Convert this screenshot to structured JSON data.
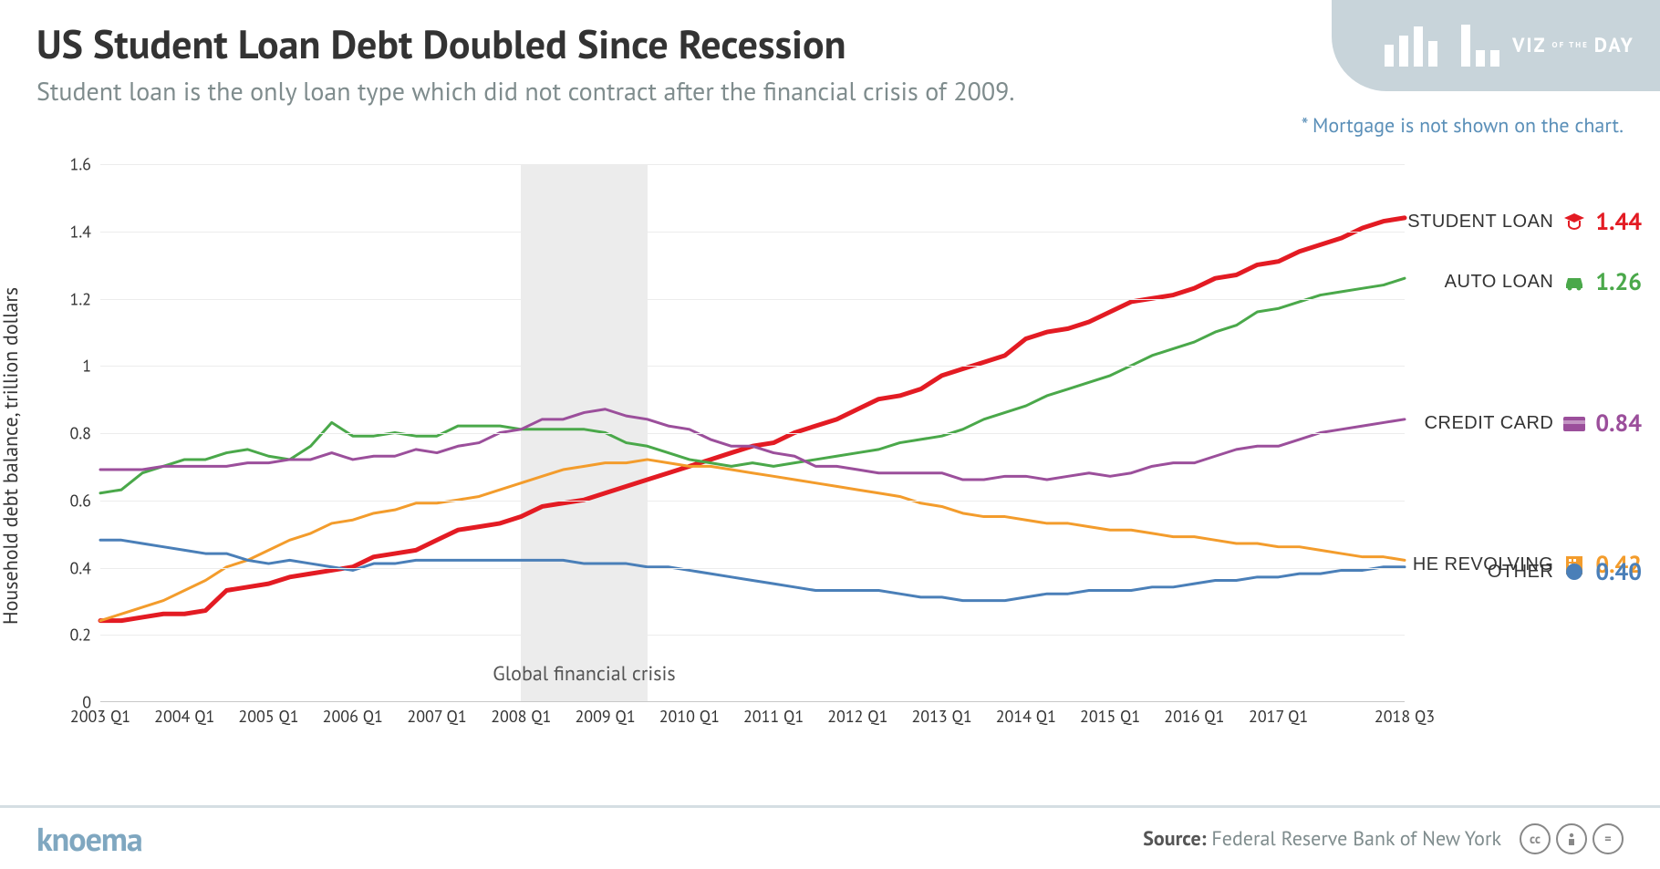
{
  "header": {
    "title": "US Student Loan Debt Doubled Since Recession",
    "subtitle": "Student loan is the only loan type which did not contract after the financial crisis of 2009.",
    "note": "* Mortgage is not shown on the chart.",
    "badge_viz": "VIZ",
    "badge_of": "OF THE",
    "badge_day": "DAY"
  },
  "chart": {
    "type": "line",
    "ylabel": "Household debt balance, trillion dollars",
    "ylim": [
      0,
      1.6
    ],
    "ytick_step": 0.2,
    "yticks": [
      "0",
      "0.2",
      "0.4",
      "0.6",
      "0.8",
      "1",
      "1.2",
      "1.4",
      "1.6"
    ],
    "x_labels": [
      "2003 Q1",
      "2004 Q1",
      "2005 Q1",
      "2006 Q1",
      "2007 Q1",
      "2008 Q1",
      "2009 Q1",
      "2010 Q1",
      "2011 Q1",
      "2012 Q1",
      "2013 Q1",
      "2014 Q1",
      "2015 Q1",
      "2016 Q1",
      "2017 Q1",
      "2018 Q3"
    ],
    "n_points": 63,
    "grid_color": "#ececec",
    "axis_color": "#c8c8c8",
    "background_color": "#ffffff",
    "title_fontsize": 44,
    "subtitle_fontsize": 28,
    "axis_fontsize": 18,
    "ylabel_fontsize": 22,
    "crisis_band": {
      "start_idx": 20,
      "end_idx": 26,
      "color": "#ececec",
      "label": "Global financial crisis"
    },
    "series": [
      {
        "name": "STUDENT LOAN",
        "color": "#e31b23",
        "line_width": 5,
        "end_value_label": "1.44",
        "icon": "graduation",
        "values": [
          0.24,
          0.24,
          0.25,
          0.26,
          0.26,
          0.27,
          0.33,
          0.34,
          0.35,
          0.37,
          0.38,
          0.39,
          0.4,
          0.43,
          0.44,
          0.45,
          0.48,
          0.51,
          0.52,
          0.53,
          0.55,
          0.58,
          0.59,
          0.6,
          0.62,
          0.64,
          0.66,
          0.68,
          0.7,
          0.72,
          0.74,
          0.76,
          0.77,
          0.8,
          0.82,
          0.84,
          0.87,
          0.9,
          0.91,
          0.93,
          0.97,
          0.99,
          1.01,
          1.03,
          1.08,
          1.1,
          1.11,
          1.13,
          1.16,
          1.19,
          1.2,
          1.21,
          1.23,
          1.26,
          1.27,
          1.3,
          1.31,
          1.34,
          1.36,
          1.38,
          1.41,
          1.43,
          1.44
        ]
      },
      {
        "name": "AUTO LOAN",
        "color": "#4aa84a",
        "line_width": 3,
        "end_value_label": "1.26",
        "icon": "car",
        "values": [
          0.62,
          0.63,
          0.68,
          0.7,
          0.72,
          0.72,
          0.74,
          0.75,
          0.73,
          0.72,
          0.76,
          0.83,
          0.79,
          0.79,
          0.8,
          0.79,
          0.79,
          0.82,
          0.82,
          0.82,
          0.81,
          0.81,
          0.81,
          0.81,
          0.8,
          0.77,
          0.76,
          0.74,
          0.72,
          0.71,
          0.7,
          0.71,
          0.7,
          0.71,
          0.72,
          0.73,
          0.74,
          0.75,
          0.77,
          0.78,
          0.79,
          0.81,
          0.84,
          0.86,
          0.88,
          0.91,
          0.93,
          0.95,
          0.97,
          1.0,
          1.03,
          1.05,
          1.07,
          1.1,
          1.12,
          1.16,
          1.17,
          1.19,
          1.21,
          1.22,
          1.23,
          1.24,
          1.26
        ]
      },
      {
        "name": "CREDIT CARD",
        "color": "#9b4f9b",
        "line_width": 3,
        "end_value_label": "0.84",
        "icon": "card",
        "values": [
          0.69,
          0.69,
          0.69,
          0.7,
          0.7,
          0.7,
          0.7,
          0.71,
          0.71,
          0.72,
          0.72,
          0.74,
          0.72,
          0.73,
          0.73,
          0.75,
          0.74,
          0.76,
          0.77,
          0.8,
          0.81,
          0.84,
          0.84,
          0.86,
          0.87,
          0.85,
          0.84,
          0.82,
          0.81,
          0.78,
          0.76,
          0.76,
          0.74,
          0.73,
          0.7,
          0.7,
          0.69,
          0.68,
          0.68,
          0.68,
          0.68,
          0.66,
          0.66,
          0.67,
          0.67,
          0.66,
          0.67,
          0.68,
          0.67,
          0.68,
          0.7,
          0.71,
          0.71,
          0.73,
          0.75,
          0.76,
          0.76,
          0.78,
          0.8,
          0.81,
          0.82,
          0.83,
          0.84
        ]
      },
      {
        "name": "HE REVOLVING",
        "color": "#f39c2c",
        "line_width": 3,
        "end_value_label": "0.42",
        "icon": "building",
        "values": [
          0.24,
          0.26,
          0.28,
          0.3,
          0.33,
          0.36,
          0.4,
          0.42,
          0.45,
          0.48,
          0.5,
          0.53,
          0.54,
          0.56,
          0.57,
          0.59,
          0.59,
          0.6,
          0.61,
          0.63,
          0.65,
          0.67,
          0.69,
          0.7,
          0.71,
          0.71,
          0.72,
          0.71,
          0.7,
          0.7,
          0.69,
          0.68,
          0.67,
          0.66,
          0.65,
          0.64,
          0.63,
          0.62,
          0.61,
          0.59,
          0.58,
          0.56,
          0.55,
          0.55,
          0.54,
          0.53,
          0.53,
          0.52,
          0.51,
          0.51,
          0.5,
          0.49,
          0.49,
          0.48,
          0.47,
          0.47,
          0.46,
          0.46,
          0.45,
          0.44,
          0.43,
          0.43,
          0.42
        ]
      },
      {
        "name": "OTHER",
        "color": "#4a7fb8",
        "line_width": 3,
        "end_value_label": "0.40",
        "icon": "circle",
        "values": [
          0.48,
          0.48,
          0.47,
          0.46,
          0.45,
          0.44,
          0.44,
          0.42,
          0.41,
          0.42,
          0.41,
          0.4,
          0.39,
          0.41,
          0.41,
          0.42,
          0.42,
          0.42,
          0.42,
          0.42,
          0.42,
          0.42,
          0.42,
          0.41,
          0.41,
          0.41,
          0.4,
          0.4,
          0.39,
          0.38,
          0.37,
          0.36,
          0.35,
          0.34,
          0.33,
          0.33,
          0.33,
          0.33,
          0.32,
          0.31,
          0.31,
          0.3,
          0.3,
          0.3,
          0.31,
          0.32,
          0.32,
          0.33,
          0.33,
          0.33,
          0.34,
          0.34,
          0.35,
          0.36,
          0.36,
          0.37,
          0.37,
          0.38,
          0.38,
          0.39,
          0.39,
          0.4,
          0.4
        ]
      }
    ]
  },
  "footer": {
    "brand": "knoema",
    "source_label": "Source:",
    "source_text": "Federal Reserve Bank of New York"
  }
}
